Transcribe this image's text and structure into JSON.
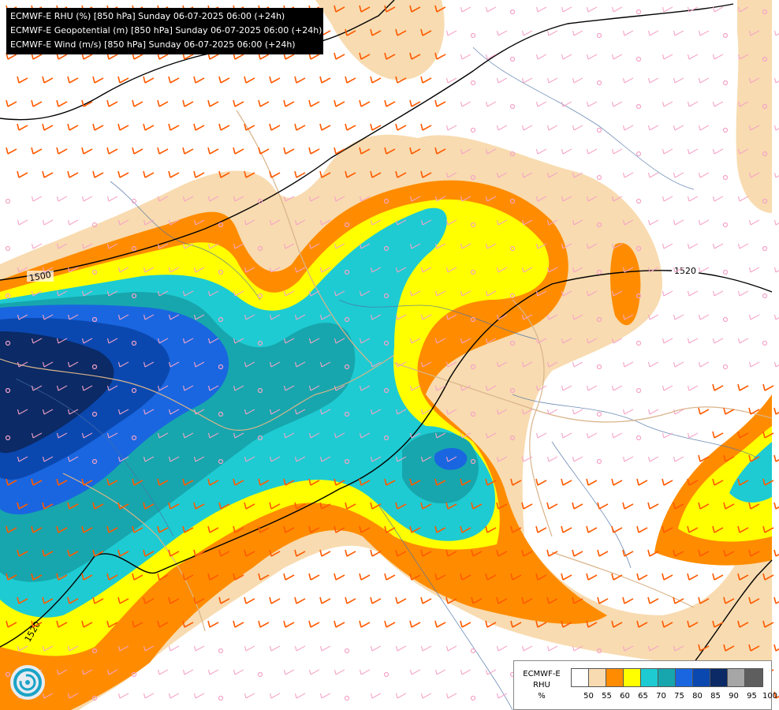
{
  "header": {
    "lines": [
      "ECMWF-E RHU (%) [850 hPa] Sunday 06-07-2025 06:00 (+24h)",
      "ECMWF-E Geopotential (m) [850 hPa] Sunday 06-07-2025 06:00 (+24h)",
      "ECMWF-E Wind (m/s) [850 hPa] Sunday 06-07-2025 06:00 (+24h)"
    ]
  },
  "contours": {
    "labels": [
      "1520",
      "1500",
      "1520"
    ]
  },
  "legend": {
    "title_lines": [
      "ECMWF-E",
      "RHU",
      "%"
    ],
    "ticks": [
      "50",
      "55",
      "60",
      "65",
      "70",
      "75",
      "80",
      "85",
      "90",
      "95",
      "100"
    ],
    "colors": [
      "#ffffff",
      "#f8dbb0",
      "#ff8c00",
      "#ffff00",
      "#1ecbd2",
      "#17a6ad",
      "#1a66e0",
      "#0a48b0",
      "#0b2a66",
      "#a6a6a6",
      "#5e5e5e"
    ]
  },
  "colors": {
    "wind_light": "#f5a3c7",
    "wind_strong": "#ff5a00",
    "wind_very_strong": "#c8102e",
    "contour": "#000000",
    "border": "#d9b48a",
    "river": "#4a6fa5"
  }
}
